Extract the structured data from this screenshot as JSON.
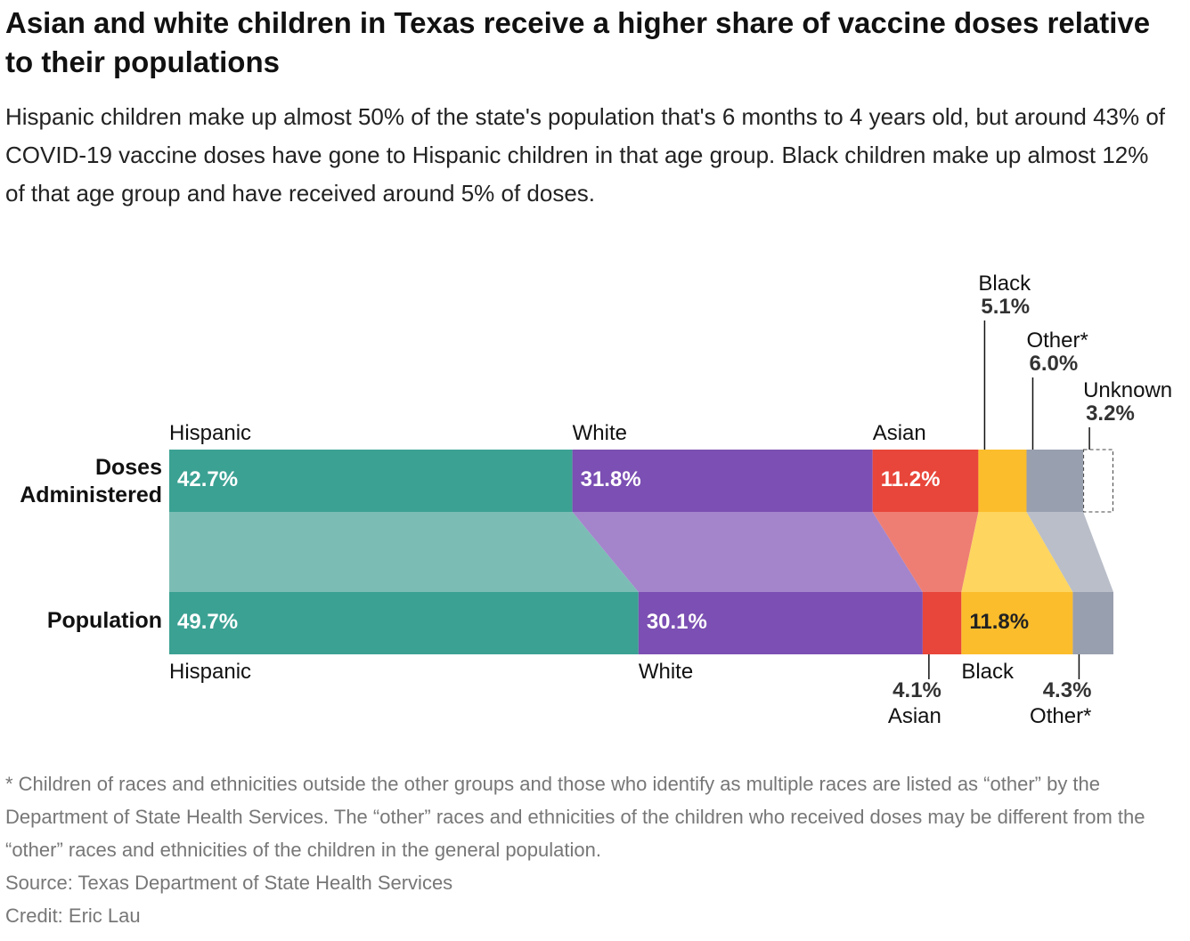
{
  "header": {
    "title": "Asian and white children in Texas receive a higher share of vaccine doses relative to their populations",
    "subtitle": "Hispanic children make up almost 50% of the state's population that's 6 months to 4 years old, but around 43% of COVID-19 vaccine doses have gone to Hispanic children in that age group. Black children make up almost 12% of that age group and have received around 5% of doses."
  },
  "chart_data": {
    "type": "bar",
    "orientation": "horizontal-stacked-100",
    "rows": [
      {
        "key": "doses",
        "label": "Doses Administered",
        "label_lines": [
          "Doses",
          "Administered"
        ]
      },
      {
        "key": "population",
        "label": "Population",
        "label_lines": [
          "Population"
        ]
      }
    ],
    "series": [
      {
        "name": "Hispanic",
        "color": "#3ba193",
        "light_color": "#7bbdb4",
        "doses": 42.7,
        "population": 49.7,
        "doses_label": "42.7%",
        "population_label": "49.7%"
      },
      {
        "name": "White",
        "color": "#7b4fb3",
        "light_color": "#a485cc",
        "doses": 31.8,
        "population": 30.1,
        "doses_label": "31.8%",
        "population_label": "30.1%"
      },
      {
        "name": "Asian",
        "color": "#e8463a",
        "light_color": "#ee7e73",
        "doses": 11.2,
        "population": 4.1,
        "doses_label": "11.2%",
        "population_label": "4.1%"
      },
      {
        "name": "Black",
        "color": "#fbbd2c",
        "light_color": "#fdd55f",
        "doses": 5.1,
        "population": 11.8,
        "doses_label": "5.1%",
        "population_label": "11.8%"
      },
      {
        "name": "Other*",
        "color": "#989fae",
        "light_color": "#b9bec9",
        "doses": 6.0,
        "population": 4.3,
        "doses_label": "6.0%",
        "population_label": "4.3%"
      },
      {
        "name": "Unknown",
        "color": "#ffffff",
        "light_color": "#ffffff",
        "doses": 3.2,
        "population": null,
        "doses_label": "3.2%",
        "population_label": ""
      }
    ],
    "xlim": [
      0,
      100
    ],
    "legend": "none"
  },
  "footer": {
    "note": "* Children of races and ethnicities outside the other groups and those who identify as multiple races are listed as “other” by the Department of State Health Services. The “other” races and ethnicities of the children who received doses may be different from the “other” races and ethnicities of the children in the general population.",
    "source": "Source: Texas Department of State Health Services",
    "credit": "Credit: Eric Lau"
  }
}
